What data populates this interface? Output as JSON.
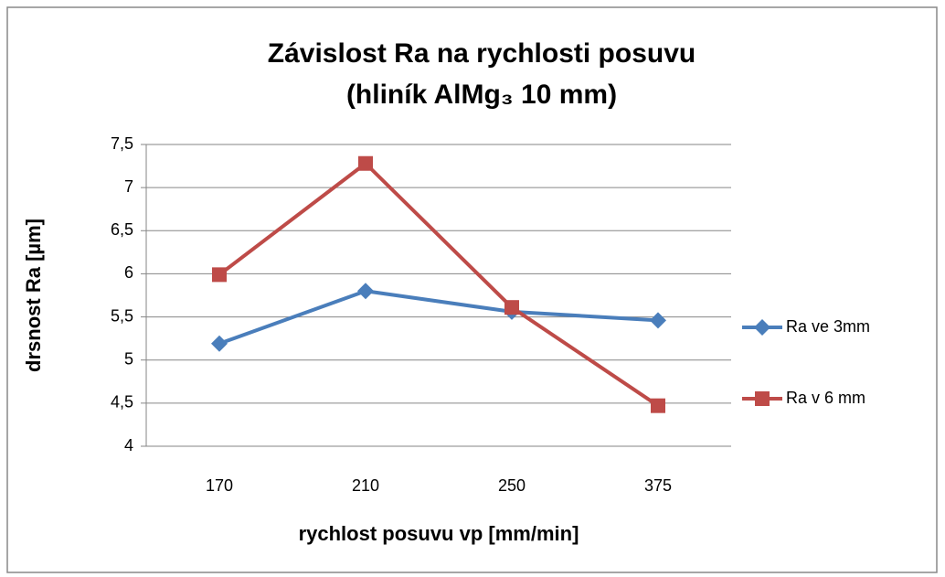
{
  "chart_data": {
    "type": "line",
    "title": [
      "Závislost Ra na rychlosti posuvu",
      "(hliník AlMg₃ 10 mm)"
    ],
    "xlabel": "rychlost posuvu vp [mm/min]",
    "ylabel": "drsnost Ra [µm]",
    "categories": [
      "170",
      "210",
      "250",
      "375"
    ],
    "series": [
      {
        "name": "Ra ve 3mm",
        "color": "#4a7ebb",
        "marker": "diamond",
        "values": [
          5.19,
          5.8,
          5.56,
          5.46
        ]
      },
      {
        "name": "Ra v 6 mm",
        "color": "#be4b48",
        "marker": "square",
        "values": [
          5.99,
          7.28,
          5.61,
          4.47
        ]
      }
    ],
    "ylim": [
      4,
      7.5
    ],
    "yticks": [
      4,
      {
        "value": 4.5,
        "label": "4,5"
      },
      5,
      {
        "value": 5.5,
        "label": "5,5"
      },
      6,
      {
        "value": 6.5,
        "label": "6,5"
      },
      7,
      {
        "value": 7.5,
        "label": "7,5"
      }
    ],
    "grid": true,
    "legend": "right"
  }
}
